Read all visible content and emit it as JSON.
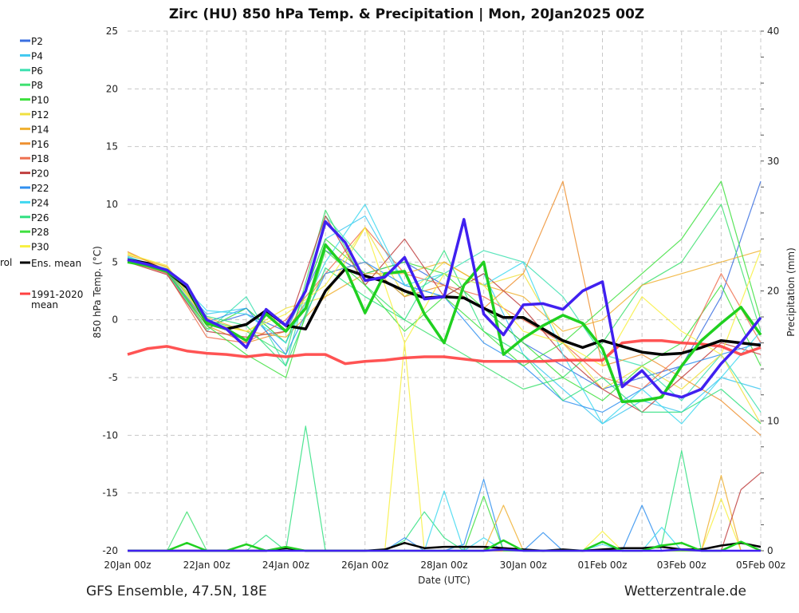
{
  "chart_data": {
    "type": "line",
    "title": "Zirc  (HU)  850 hPa Temp. & Precipitation | Mon, 20Jan2025 00Z",
    "xlabel": "Date (UTC)",
    "ylabel": "850 hPa Temp. (°C)",
    "ylabel_right": "Precipitation (mm)",
    "ylim": [
      -20,
      25
    ],
    "ylim_right": [
      0,
      40
    ],
    "yticks": [
      "25",
      "20",
      "15",
      "10",
      "5",
      "0",
      "-5",
      "-10",
      "-15",
      "-20"
    ],
    "yticks_right": [
      "40",
      "30",
      "20",
      "10",
      "0"
    ],
    "xticks": [
      "20Jan 00z",
      "22Jan 00z",
      "24Jan 00z",
      "26Jan 00z",
      "28Jan 00z",
      "30Jan 00z",
      "01Feb 00z",
      "03Feb 00z",
      "05Feb 00z"
    ],
    "x_range_days": [
      0,
      16
    ],
    "grid": true,
    "footer_left": "GFS Ensemble, 47.5N, 18E",
    "footer_right": "Wetterzentrale.de",
    "legend_control_partial": "rol",
    "legend_placement": "left",
    "legend": [
      {
        "label": "P2",
        "color": "#3a6fe0"
      },
      {
        "label": "P4",
        "color": "#40c8f0"
      },
      {
        "label": "P6",
        "color": "#3de0b0"
      },
      {
        "label": "P8",
        "color": "#3ee070"
      },
      {
        "label": "P10",
        "color": "#3ee03e"
      },
      {
        "label": "P12",
        "color": "#f0e040"
      },
      {
        "label": "P14",
        "color": "#f0b030"
      },
      {
        "label": "P16",
        "color": "#ee9030"
      },
      {
        "label": "P18",
        "color": "#ee7050"
      },
      {
        "label": "P20",
        "color": "#c04040"
      },
      {
        "label": "P22",
        "color": "#3090f0"
      },
      {
        "label": "P24",
        "color": "#40d8f0"
      },
      {
        "label": "P26",
        "color": "#30e080"
      },
      {
        "label": "P28",
        "color": "#40e040"
      },
      {
        "label": "P30",
        "color": "#f8f040"
      },
      {
        "label": "Ens. mean",
        "color": "#000000"
      },
      {
        "label": "1991-2020 mean",
        "color": "#ff4040"
      }
    ],
    "members_step_days": 1,
    "members": [
      {
        "name": "P2",
        "color": "#3a6fe0",
        "values": [
          5.3,
          4.0,
          -0.5,
          0.5,
          -1,
          6,
          4,
          5,
          3,
          1,
          -2,
          -4,
          -6,
          -5,
          -4,
          2,
          12
        ]
      },
      {
        "name": "P4",
        "color": "#40c8f0",
        "values": [
          5.5,
          4.3,
          0.5,
          1,
          -2,
          7,
          9,
          3,
          2,
          4,
          -3,
          -6,
          -9,
          -7,
          -8,
          -5,
          -6
        ]
      },
      {
        "name": "P6",
        "color": "#3de0b0",
        "values": [
          5.0,
          4.1,
          -1,
          2,
          -4,
          9,
          5,
          2,
          4,
          6,
          5,
          2,
          -3,
          -4,
          -7,
          -3,
          -8
        ]
      },
      {
        "name": "P8",
        "color": "#3ee070",
        "values": [
          5.2,
          4.4,
          0,
          -1,
          -3,
          9.5,
          3,
          0,
          -2,
          -4,
          -6,
          -5,
          -2,
          3,
          5,
          10,
          -1
        ]
      },
      {
        "name": "P10",
        "color": "#3ee03e",
        "values": [
          5.4,
          4.2,
          -0.8,
          1,
          -2,
          7,
          4,
          5,
          4,
          1,
          -2,
          -5,
          -7,
          -4,
          -2,
          3,
          -4
        ]
      },
      {
        "name": "P12",
        "color": "#f0e040",
        "values": [
          5.8,
          4.5,
          -0.3,
          -1,
          1,
          2,
          8,
          2,
          5,
          3,
          4,
          -2,
          -6,
          -4,
          -6,
          -3,
          -9
        ]
      },
      {
        "name": "P14",
        "color": "#f0b030",
        "values": [
          5.6,
          4.6,
          0.2,
          -1,
          -1.5,
          2,
          4,
          4,
          5,
          3,
          2,
          -1,
          0,
          3,
          4,
          5,
          6
        ]
      },
      {
        "name": "P16",
        "color": "#ee9030",
        "values": [
          5.9,
          4.3,
          -0.5,
          -2,
          -1,
          4,
          5,
          2,
          3,
          1,
          4,
          12,
          -4,
          -3,
          -5,
          -7,
          -10
        ]
      },
      {
        "name": "P18",
        "color": "#ee7050",
        "values": [
          5.1,
          4.0,
          -1.5,
          -2,
          0,
          4,
          8,
          4,
          3,
          2,
          0,
          -2,
          -5,
          -6,
          -3,
          4,
          -2
        ]
      },
      {
        "name": "P20",
        "color": "#c04040",
        "values": [
          5.0,
          3.9,
          -1,
          -1.5,
          -1,
          9,
          3,
          7,
          2,
          4,
          1,
          -3,
          -6,
          -8,
          -5,
          -2,
          -3
        ]
      },
      {
        "name": "P22",
        "color": "#3090f0",
        "values": [
          5.3,
          4.1,
          -0.2,
          1,
          -3,
          4,
          5,
          3,
          2,
          -2,
          -4,
          -7,
          -8,
          -6,
          -4,
          -3,
          -2
        ]
      },
      {
        "name": "P24",
        "color": "#40d8f0",
        "values": [
          5.4,
          4.4,
          0.8,
          0.5,
          -2,
          5,
          10,
          3,
          4,
          3,
          5,
          -3,
          -9,
          -6,
          -9,
          -5,
          -1
        ]
      },
      {
        "name": "P26",
        "color": "#30e080",
        "values": [
          5.2,
          4.2,
          0.3,
          -0.5,
          -4,
          4.5,
          2,
          0,
          6,
          -1,
          -3,
          -7,
          -5,
          -8,
          -8,
          -6,
          -9
        ]
      },
      {
        "name": "P28",
        "color": "#40e040",
        "values": [
          5.1,
          4.1,
          -0.5,
          -3,
          -5,
          6,
          3,
          -1,
          2,
          -1,
          -4,
          -2,
          1,
          4,
          7,
          12,
          0
        ]
      },
      {
        "name": "P30",
        "color": "#f8f040",
        "values": [
          5.7,
          4.7,
          -0.2,
          -1,
          0.5,
          3,
          8,
          -2,
          4,
          3,
          -1,
          -2,
          -4,
          2,
          -1,
          -3,
          6
        ]
      }
    ],
    "main_step_days": 0.5,
    "climatology": {
      "name": "1991-2020 mean",
      "color": "#ff4040",
      "values": [
        -3.0,
        -2.5,
        -2.3,
        -2.7,
        -2.9,
        -3.0,
        -3.2,
        -3.0,
        -3.2,
        -3.0,
        -3.0,
        -3.8,
        -3.6,
        -3.5,
        -3.3,
        -3.2,
        -3.2,
        -3.4,
        -3.6,
        -3.6,
        -3.6,
        -3.6,
        -3.5,
        -3.5,
        -3.5,
        -2.0,
        -1.8,
        -1.8,
        -2.0,
        -2.1,
        -2.3,
        -3.0,
        -2.4
      ]
    },
    "control": {
      "name": "Control",
      "color": "#4020f0",
      "values": [
        5.2,
        4.8,
        4.3,
        3.0,
        0.0,
        -0.8,
        -2.4,
        0.9,
        -0.5,
        2.5,
        8.5,
        6.7,
        3.4,
        3.7,
        5.4,
        1.8,
        2.0,
        8.7,
        0.5,
        -1.3,
        1.3,
        1.4,
        0.9,
        2.5,
        3.3,
        -5.8,
        -4.4,
        -6.3,
        -6.7,
        -6.0,
        -3.8,
        -2.0,
        0.2
      ]
    },
    "operational": {
      "name": "Operational",
      "color": "#20d020",
      "values": [
        5.0,
        4.7,
        4.2,
        3.0,
        -0.3,
        -0.8,
        -1.8,
        0.5,
        -1.0,
        1.0,
        6.5,
        4.5,
        0.6,
        4.0,
        4.2,
        0.5,
        -2.0,
        3.0,
        5.0,
        -3.0,
        -1.6,
        -0.5,
        0.4,
        -0.3,
        -2.5,
        -7.1,
        -7.0,
        -6.7,
        -4.0,
        -1.8,
        -0.3,
        1.1,
        -1.3
      ]
    },
    "ens_mean": {
      "name": "Ens. mean",
      "color": "#000000",
      "values": [
        5.2,
        4.9,
        4.2,
        2.8,
        -0.3,
        -0.8,
        -0.4,
        0.8,
        -0.5,
        -0.8,
        2.5,
        4.4,
        3.8,
        3.3,
        2.5,
        1.9,
        2.0,
        1.9,
        1.0,
        0.2,
        0.2,
        -0.8,
        -1.8,
        -2.4,
        -1.8,
        -2.3,
        -2.8,
        -3.0,
        -2.9,
        -2.4,
        -1.8,
        -2.0,
        -2.2
      ]
    },
    "precip_step_days": 0.5,
    "precip": [
      {
        "name": "P8",
        "color": "#3ee070",
        "values": [
          0,
          0,
          0,
          3,
          0,
          0,
          0,
          0,
          0,
          0,
          0,
          0,
          0,
          0,
          0,
          0,
          0,
          0,
          0,
          0,
          0,
          0,
          0,
          0,
          0,
          0,
          0,
          0,
          0,
          0,
          0,
          0,
          0
        ]
      },
      {
        "name": "P26",
        "color": "#30e080",
        "values": [
          0,
          0,
          0,
          0,
          0,
          0,
          0,
          1.2,
          0,
          9.6,
          0,
          0,
          0,
          0,
          0.8,
          3,
          1,
          0,
          0,
          0,
          0,
          0,
          0,
          0,
          0,
          0,
          0,
          0.5,
          7.7,
          0,
          0,
          0,
          0
        ]
      },
      {
        "name": "P30",
        "color": "#f8f040",
        "values": [
          0,
          0,
          0,
          0,
          0,
          0,
          0,
          0,
          0,
          0,
          0,
          0,
          0,
          0,
          16,
          0,
          0,
          0,
          0,
          0,
          0,
          0,
          0,
          0,
          1.5,
          0,
          0,
          0,
          0,
          0,
          4,
          0,
          0
        ]
      },
      {
        "name": "P22",
        "color": "#3090f0",
        "values": [
          0,
          0,
          0,
          0,
          0,
          0,
          0,
          0,
          0,
          0,
          0,
          0,
          0,
          0,
          1.0,
          0,
          0,
          0.5,
          5.5,
          0,
          0,
          1.4,
          0,
          0,
          0,
          0,
          3.5,
          0,
          0,
          0,
          0,
          0,
          0
        ]
      },
      {
        "name": "P24",
        "color": "#40d8f0",
        "values": [
          0,
          0,
          0,
          0,
          0,
          0,
          0,
          0,
          0,
          0,
          0,
          0,
          0,
          0,
          0,
          0,
          4.6,
          0,
          1,
          0,
          0,
          0,
          0,
          0,
          0.5,
          0,
          0,
          1.8,
          0,
          0,
          0,
          0,
          0
        ]
      },
      {
        "name": "P14",
        "color": "#f0b030",
        "values": [
          0,
          0,
          0,
          0,
          0,
          0,
          0,
          0,
          0,
          0,
          0,
          0,
          0,
          0,
          0,
          0,
          0,
          0,
          0,
          3.5,
          0,
          0,
          0,
          0,
          0,
          0,
          0,
          0,
          0,
          0,
          5.8,
          0,
          0
        ]
      },
      {
        "name": "P20",
        "color": "#c04040",
        "values": [
          0,
          0,
          0,
          0,
          0,
          0,
          0,
          0,
          0,
          0,
          0,
          0,
          0,
          0,
          0,
          0,
          0,
          0,
          0,
          0,
          0,
          0,
          0,
          0,
          0,
          0,
          0,
          0,
          0,
          0,
          0,
          4.7,
          6
        ]
      },
      {
        "name": "P10",
        "color": "#3ee03e",
        "values": [
          0,
          0,
          0,
          0,
          0,
          0,
          0,
          0,
          0,
          0,
          0,
          0,
          0,
          0,
          0,
          0,
          0,
          0,
          4.2,
          0,
          0,
          0,
          0,
          0,
          0,
          0,
          0,
          0,
          0,
          0,
          0,
          0,
          0
        ]
      }
    ],
    "precip_control": {
      "color": "#4020f0",
      "values": [
        0,
        0,
        0,
        0,
        0,
        0,
        0,
        0,
        0,
        0,
        0,
        0,
        0,
        0,
        0,
        0,
        0,
        0,
        0,
        0.1,
        0,
        0,
        0,
        0,
        0,
        0,
        0,
        0,
        0.1,
        0,
        0,
        0,
        0
      ]
    },
    "precip_operational": {
      "color": "#20d020",
      "values": [
        0,
        0,
        0,
        0.6,
        0,
        0,
        0.5,
        0,
        0.3,
        0,
        0,
        0,
        0,
        0,
        0,
        0,
        0,
        0,
        0,
        0.8,
        0,
        0,
        0,
        0,
        0.7,
        0,
        0,
        0.4,
        0.6,
        0,
        0,
        0.7,
        0
      ]
    },
    "precip_ens_mean": {
      "color": "#000000",
      "values": [
        0,
        0,
        0,
        0,
        0,
        0,
        0,
        0,
        0.2,
        0,
        0,
        0,
        0,
        0.1,
        0.6,
        0.2,
        0.3,
        0.3,
        0.3,
        0.2,
        0.1,
        0,
        0.1,
        0,
        0.1,
        0.2,
        0.2,
        0.3,
        0.1,
        0.1,
        0.4,
        0.6,
        0.3
      ]
    }
  }
}
